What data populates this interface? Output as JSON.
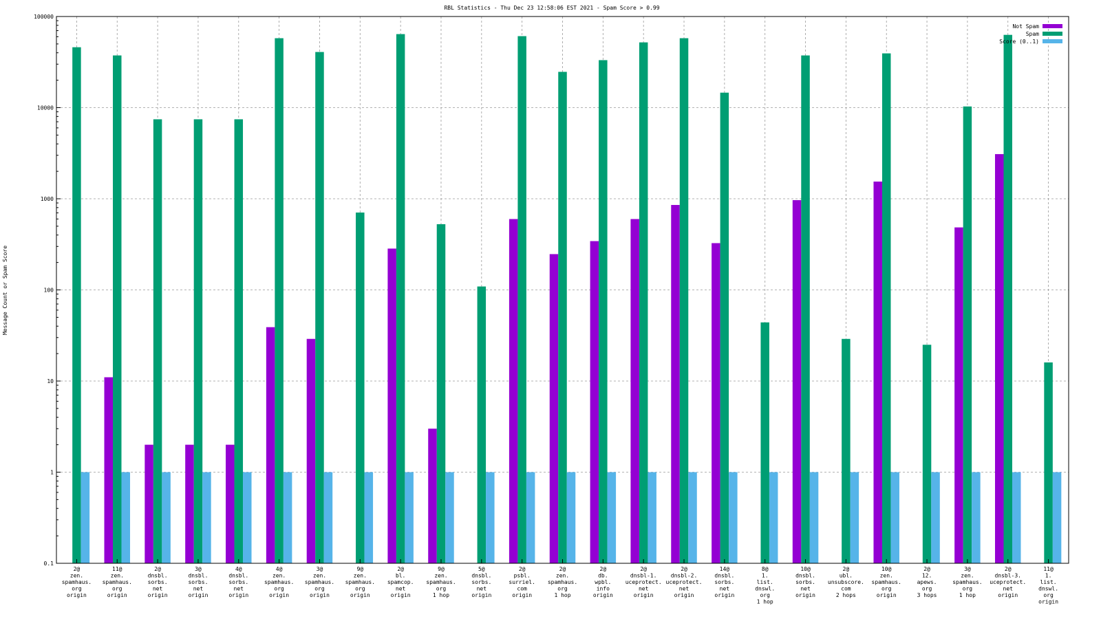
{
  "chart_data": {
    "type": "bar",
    "title": "RBL Statistics - Thu Dec 23 12:58:06 EST 2021 - Spam Score > 0.99",
    "xlabel": "",
    "ylabel": "Message Count or Spam Score",
    "yscale": "log",
    "ylim": [
      0.1,
      100000
    ],
    "yticks": [
      "0.1",
      "1",
      "10",
      "100",
      "1000",
      "10000",
      "100000"
    ],
    "grid": true,
    "legend_position": "top-right",
    "categories": [
      [
        "2@",
        "zen.",
        "spamhaus.",
        "org",
        "origin"
      ],
      [
        "11@",
        "zen.",
        "spamhaus.",
        "org",
        "origin"
      ],
      [
        "2@",
        "dnsbl.",
        "sorbs.",
        "net",
        "origin"
      ],
      [
        "3@",
        "dnsbl.",
        "sorbs.",
        "net",
        "origin"
      ],
      [
        "4@",
        "dnsbl.",
        "sorbs.",
        "net",
        "origin"
      ],
      [
        "4@",
        "zen.",
        "spamhaus.",
        "org",
        "origin"
      ],
      [
        "3@",
        "zen.",
        "spamhaus.",
        "org",
        "origin"
      ],
      [
        "9@",
        "zen.",
        "spamhaus.",
        "org",
        "origin"
      ],
      [
        "2@",
        "bl.",
        "spamcop.",
        "net",
        "origin"
      ],
      [
        "9@",
        "zen.",
        "spamhaus.",
        "org",
        "1 hop"
      ],
      [
        "5@",
        "dnsbl.",
        "sorbs.",
        "net",
        "origin"
      ],
      [
        "2@",
        "psbl.",
        "surriel.",
        "com",
        "origin"
      ],
      [
        "2@",
        "zen.",
        "spamhaus.",
        "org",
        "1 hop"
      ],
      [
        "2@",
        "db.",
        "wpbl.",
        "info",
        "origin"
      ],
      [
        "2@",
        "dnsbl-1.",
        "uceprotect.",
        "net",
        "origin"
      ],
      [
        "2@",
        "dnsbl-2.",
        "uceprotect.",
        "net",
        "origin"
      ],
      [
        "14@",
        "dnsbl.",
        "sorbs.",
        "net",
        "origin"
      ],
      [
        "8@",
        "1.",
        "list.",
        "dnswl.",
        "org",
        "1 hop"
      ],
      [
        "10@",
        "dnsbl.",
        "sorbs.",
        "net",
        "origin"
      ],
      [
        "2@",
        "ubl.",
        "unsubscore.",
        "com",
        "2 hops"
      ],
      [
        "10@",
        "zen.",
        "spamhaus.",
        "org",
        "origin"
      ],
      [
        "2@",
        "12.",
        "apews.",
        "org",
        "3 hops"
      ],
      [
        "3@",
        "zen.",
        "spamhaus.",
        "org",
        "1 hop"
      ],
      [
        "2@",
        "dnsbl-3.",
        "uceprotect.",
        "net",
        "origin"
      ],
      [
        "11@",
        "1.",
        "list.",
        "dnswl.",
        "org",
        "origin"
      ]
    ],
    "series": [
      {
        "name": "Not Spam",
        "color": "#9400d3",
        "values": [
          0,
          11,
          2,
          2,
          2,
          39,
          29,
          0,
          284,
          3,
          0,
          599,
          247,
          343,
          599,
          855,
          326,
          0,
          966,
          0,
          1544,
          0,
          485,
          3090,
          0
        ]
      },
      {
        "name": "Spam",
        "color": "#009e73",
        "values": [
          46000,
          37400,
          7450,
          7450,
          7450,
          57800,
          40800,
          706,
          64100,
          526,
          109,
          60900,
          24700,
          33200,
          52000,
          57800,
          14600,
          44,
          37400,
          29,
          39400,
          25,
          10300,
          62900,
          16
        ]
      },
      {
        "name": "Score (0..1)",
        "color": "#56b4e9",
        "values": [
          1,
          1,
          1,
          1,
          1,
          1,
          1,
          1,
          1,
          1,
          1,
          1,
          1,
          1,
          1,
          1,
          1,
          1,
          1,
          1,
          1,
          1,
          1,
          1,
          1
        ]
      }
    ]
  }
}
